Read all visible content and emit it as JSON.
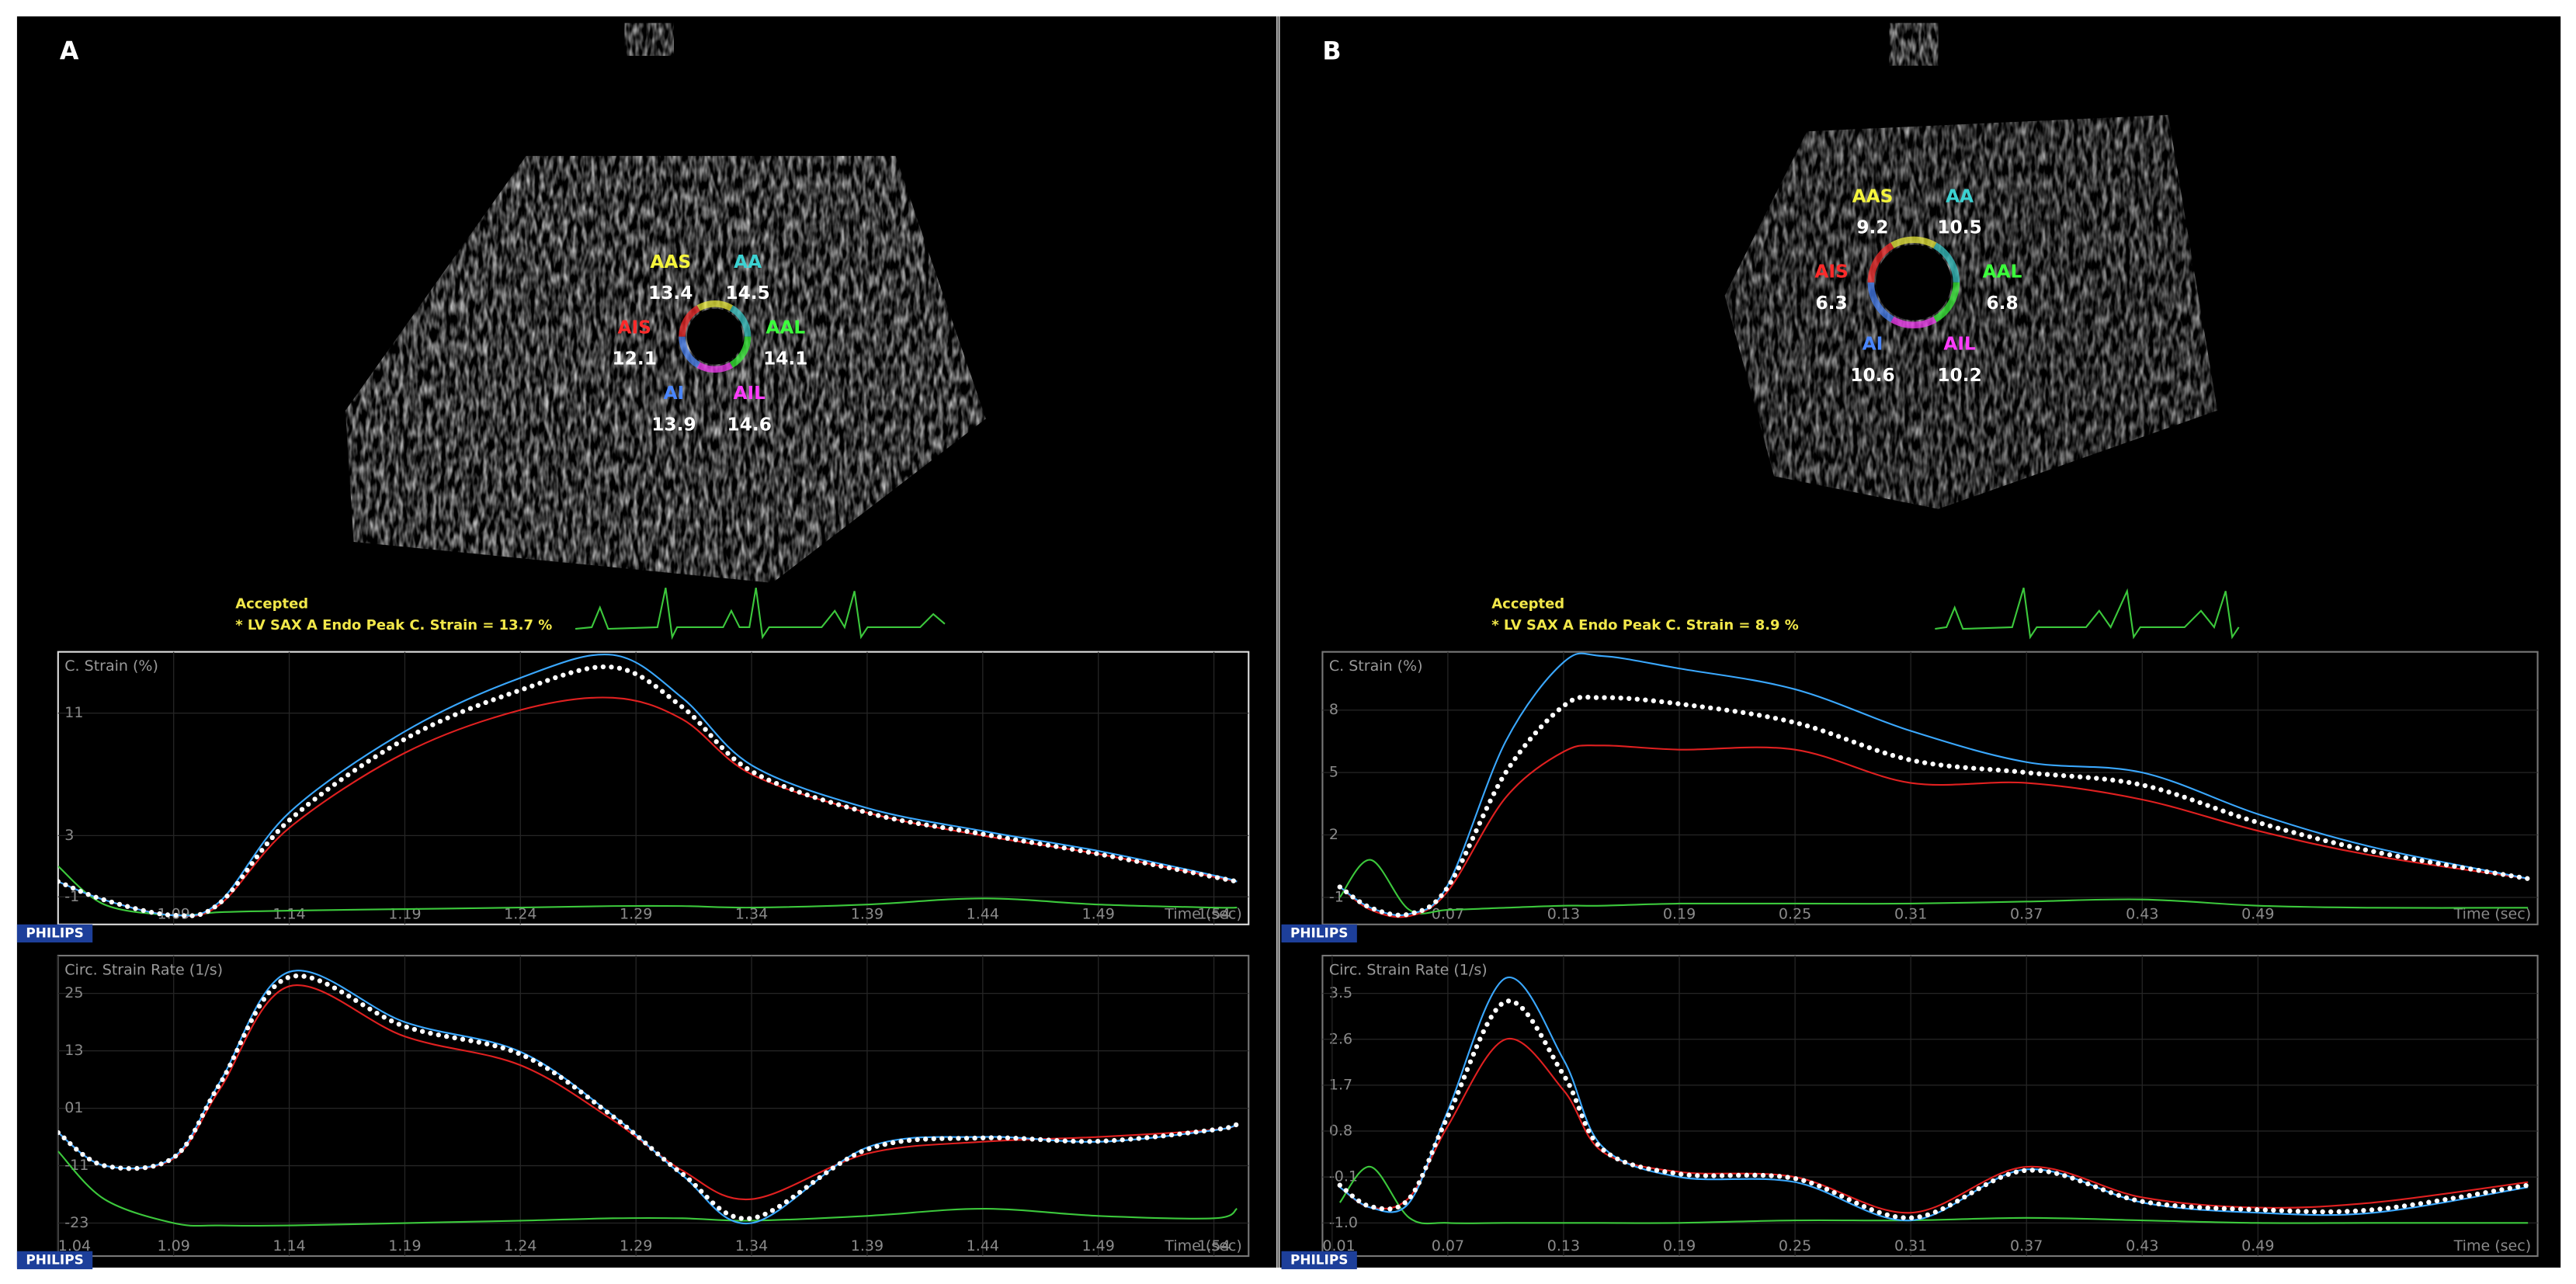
{
  "panels": [
    {
      "label": "A",
      "status": "Accepted",
      "measurement": "* LV SAX A Endo Peak C. Strain = 13.7 %",
      "segments": [
        {
          "name": "AAS",
          "value": 13.4,
          "color": "#f5f53c"
        },
        {
          "name": "AA",
          "value": 14.5,
          "color": "#3cd2d2"
        },
        {
          "name": "AIS",
          "value": 12.1,
          "color": "#ff2a2a"
        },
        {
          "name": "AAL",
          "value": 14.1,
          "color": "#3cff3c"
        },
        {
          "name": "AI",
          "value": 13.9,
          "color": "#4a86ff"
        },
        {
          "name": "AIL",
          "value": 14.6,
          "color": "#ff3cff"
        }
      ]
    },
    {
      "label": "B",
      "status": "Accepted",
      "measurement": "* LV SAX A Endo Peak C. Strain = 8.9 %",
      "segments": [
        {
          "name": "AAS",
          "value": 9.2,
          "color": "#f5f53c"
        },
        {
          "name": "AA",
          "value": 10.5,
          "color": "#3cd2d2"
        },
        {
          "name": "AIS",
          "value": 6.3,
          "color": "#ff2a2a"
        },
        {
          "name": "AAL",
          "value": 6.8,
          "color": "#3cff3c"
        },
        {
          "name": "AI",
          "value": 10.6,
          "color": "#4a86ff"
        },
        {
          "name": "AIL",
          "value": 10.2,
          "color": "#ff3cff"
        }
      ]
    }
  ],
  "logo": "PHILIPS",
  "chart_data": [
    {
      "type": "line",
      "title": "C. Strain (%)",
      "x_label": "Time (sec)",
      "x": [
        1.04,
        1.06,
        1.09,
        1.11,
        1.14,
        1.19,
        1.24,
        1.28,
        1.31,
        1.34,
        1.39,
        1.44,
        1.49,
        1.54,
        1.55
      ],
      "series": [
        {
          "color": "#3cc83c",
          "values": [
            1.0,
            -1.5,
            -2.2,
            -2.0,
            -1.9,
            -1.8,
            -1.7,
            -1.6,
            -1.6,
            -1.7,
            -1.5,
            -1.1,
            -1.5,
            -1.7,
            -1.7
          ]
        },
        {
          "color": "#e02020",
          "values": [
            0,
            -1.2,
            -2.2,
            -1.5,
            3.5,
            8.4,
            11.2,
            12.0,
            10.6,
            7.0,
            4.5,
            3.0,
            1.8,
            0.3,
            0
          ]
        },
        {
          "color": "#3aa8ff",
          "values": [
            0,
            -1.2,
            -2.2,
            -1.3,
            4.5,
            9.8,
            13.3,
            14.8,
            12.0,
            7.6,
            4.8,
            3.3,
            2.0,
            0.4,
            0
          ]
        },
        {
          "color": "#ffffff",
          "dotted": true,
          "values": [
            0,
            -1.2,
            -2.2,
            -1.4,
            4.0,
            9.3,
            12.5,
            14.0,
            11.4,
            7.2,
            4.5,
            3.1,
            1.8,
            0.3,
            0
          ]
        }
      ],
      "xlim": [
        1.04,
        1.555
      ],
      "ylim": [
        -2.8,
        15
      ],
      "xticks": [
        1.09,
        1.14,
        1.19,
        1.24,
        1.29,
        1.34,
        1.39,
        1.44,
        1.49,
        1.54
      ],
      "yticks": [
        11,
        3,
        -1
      ],
      "grid": true
    },
    {
      "type": "line",
      "title": "Circ. Strain Rate (1/s)",
      "x_label": "Time (sec)",
      "x": [
        1.04,
        1.06,
        1.09,
        1.11,
        1.14,
        1.19,
        1.24,
        1.28,
        1.31,
        1.34,
        1.39,
        1.44,
        1.49,
        1.54,
        1.55
      ],
      "series": [
        {
          "color": "#3cc83c",
          "values": [
            -8,
            -18,
            -23,
            -23.5,
            -23.5,
            -23,
            -22.5,
            -22,
            -22,
            -22.5,
            -21.5,
            -20,
            -21.5,
            -22,
            -20
          ]
        },
        {
          "color": "#e02020",
          "values": [
            -4.1,
            -11,
            -9.5,
            5,
            26.5,
            16,
            10,
            -1.5,
            -12,
            -18,
            -8.5,
            -6,
            -5,
            -3.5,
            -2.5
          ]
        },
        {
          "color": "#3aa8ff",
          "values": [
            -4.1,
            -11,
            -9.2,
            6.5,
            29.5,
            19,
            12.8,
            -0.5,
            -13,
            -23,
            -7.2,
            -5,
            -6,
            -3.6,
            -2.4
          ]
        },
        {
          "color": "#ffffff",
          "dotted": true,
          "values": [
            -4.1,
            -11,
            -9.3,
            6.1,
            28.4,
            18.1,
            12.3,
            -0.7,
            -12.7,
            -22,
            -7.6,
            -5.2,
            -5.9,
            -3.5,
            -2.4
          ]
        }
      ],
      "xlim": [
        1.04,
        1.555
      ],
      "ylim": [
        -29.9,
        32.9
      ],
      "xticks": [
        1.04,
        1.09,
        1.14,
        1.19,
        1.24,
        1.29,
        1.34,
        1.39,
        1.44,
        1.49,
        1.54
      ],
      "yticks": [
        25,
        13,
        {
          "value": 1,
          "label": "01"
        },
        -11,
        -23
      ],
      "grid": true
    },
    {
      "type": "line",
      "title": "C. Strain (%)",
      "x_label": "Time (sec)",
      "x": [
        0.014,
        0.03,
        0.05,
        0.07,
        0.1,
        0.13,
        0.15,
        0.19,
        0.25,
        0.31,
        0.37,
        0.43,
        0.49,
        0.55,
        0.63
      ],
      "series": [
        {
          "color": "#3cc83c",
          "values": [
            -1.0,
            0.8,
            -1.6,
            -1.6,
            -1.5,
            -1.4,
            -1.4,
            -1.3,
            -1.3,
            -1.3,
            -1.2,
            -1.1,
            -1.4,
            -1.5,
            -1.5
          ]
        },
        {
          "color": "#e02020",
          "values": [
            -0.5,
            -1.6,
            -1.9,
            -0.7,
            3.8,
            6.0,
            6.3,
            6.1,
            6.1,
            4.5,
            4.5,
            3.7,
            2.2,
            1.0,
            -0.1
          ]
        },
        {
          "color": "#3aa8ff",
          "values": [
            -0.5,
            -1.5,
            -1.8,
            -0.4,
            6.5,
            10.3,
            10.6,
            10.0,
            9.0,
            7.0,
            5.5,
            5.0,
            3.0,
            1.4,
            -0.1
          ]
        },
        {
          "color": "#ffffff",
          "dotted": true,
          "values": [
            -0.5,
            -1.5,
            -1.8,
            -0.5,
            5.0,
            8.2,
            8.6,
            8.3,
            7.4,
            5.6,
            5.0,
            4.4,
            2.6,
            1.2,
            -0.1
          ]
        }
      ],
      "xlim": [
        0.005,
        0.635
      ],
      "ylim": [
        -2.3,
        10.8
      ],
      "xticks": [
        0.07,
        0.13,
        0.19,
        0.25,
        0.31,
        0.37,
        0.43,
        0.49
      ],
      "yticks": [
        8,
        5,
        2,
        -1
      ],
      "grid": true
    },
    {
      "type": "line",
      "title": "Circ. Strain Rate (1/s)",
      "x_label": "Time (sec)",
      "x": [
        0.014,
        0.03,
        0.05,
        0.07,
        0.1,
        0.13,
        0.15,
        0.19,
        0.25,
        0.31,
        0.37,
        0.43,
        0.49,
        0.55,
        0.63
      ],
      "series": [
        {
          "color": "#3cc83c",
          "values": [
            -0.6,
            0.1,
            -0.9,
            -1.0,
            -1.0,
            -1.0,
            -1.0,
            -1.0,
            -0.95,
            -0.95,
            -0.9,
            -0.95,
            -1.0,
            -1.0,
            -1.0
          ]
        },
        {
          "color": "#e02020",
          "values": [
            -0.3,
            -0.7,
            -0.5,
            0.9,
            2.6,
            1.6,
            0.4,
            0.0,
            -0.1,
            -0.8,
            0.1,
            -0.5,
            -0.7,
            -0.6,
            -0.2
          ]
        },
        {
          "color": "#3aa8ff",
          "values": [
            -0.3,
            -0.7,
            -0.6,
            1.2,
            3.8,
            2.2,
            0.5,
            -0.1,
            -0.2,
            -0.95,
            0.05,
            -0.6,
            -0.8,
            -0.8,
            -0.3
          ]
        },
        {
          "color": "#ffffff",
          "dotted": true,
          "values": [
            -0.26,
            -0.68,
            -0.52,
            1.09,
            3.34,
            1.9,
            0.45,
            -0.04,
            -0.13,
            -0.9,
            0.03,
            -0.58,
            -0.74,
            -0.74,
            -0.26
          ]
        }
      ],
      "xlim": [
        0.005,
        0.635
      ],
      "ylim": [
        -1.65,
        4.24
      ],
      "xticks": [
        0.01,
        0.07,
        0.13,
        0.19,
        0.25,
        0.31,
        0.37,
        0.43,
        0.49
      ],
      "yticks": [
        3.5,
        2.6,
        1.7,
        0.8,
        -0.1,
        {
          "value": -1,
          "label": "-1.0"
        }
      ],
      "grid": true
    }
  ]
}
